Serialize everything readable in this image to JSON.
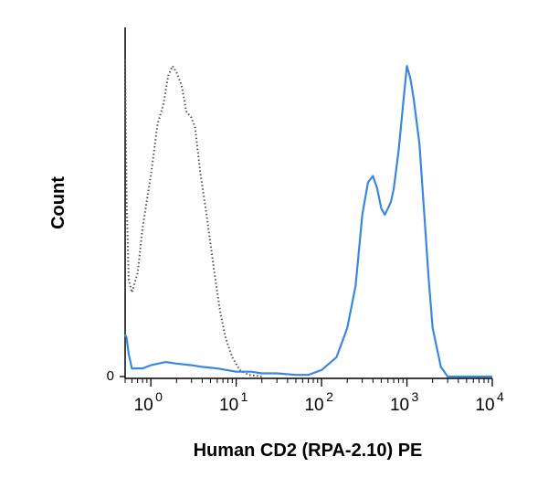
{
  "chart_data": {
    "type": "line",
    "title": "",
    "xlabel": "Human CD2 (RPA-2.10) PE",
    "ylabel": "Count",
    "x_scale": "log",
    "xlim": [
      0.5,
      10000
    ],
    "ylim": [
      0,
      1
    ],
    "grid": false,
    "legend": "none",
    "x_ticks": [
      {
        "value": 1,
        "base": "10",
        "exp": "0"
      },
      {
        "value": 10,
        "base": "10",
        "exp": "1"
      },
      {
        "value": 100,
        "base": "10",
        "exp": "2"
      },
      {
        "value": 1000,
        "base": "10",
        "exp": "3"
      },
      {
        "value": 10000,
        "base": "10",
        "exp": "4"
      }
    ],
    "y_ticks": [
      {
        "value": 0,
        "label": "0"
      }
    ],
    "series": [
      {
        "style": "dotted",
        "color": "#555555",
        "points": [
          [
            0.5,
            0.98
          ],
          [
            0.52,
            0.55
          ],
          [
            0.55,
            0.3
          ],
          [
            0.6,
            0.26
          ],
          [
            0.7,
            0.32
          ],
          [
            0.8,
            0.46
          ],
          [
            1.0,
            0.62
          ],
          [
            1.2,
            0.78
          ],
          [
            1.4,
            0.84
          ],
          [
            1.6,
            0.93
          ],
          [
            1.8,
            0.96
          ],
          [
            2.0,
            0.94
          ],
          [
            2.3,
            0.9
          ],
          [
            2.6,
            0.82
          ],
          [
            3.0,
            0.8
          ],
          [
            3.3,
            0.77
          ],
          [
            3.8,
            0.63
          ],
          [
            4.5,
            0.5
          ],
          [
            5.5,
            0.33
          ],
          [
            6.5,
            0.2
          ],
          [
            7.5,
            0.12
          ],
          [
            9.0,
            0.06
          ],
          [
            11,
            0.02
          ],
          [
            14,
            0.005
          ],
          [
            20,
            0.0
          ]
        ]
      },
      {
        "style": "solid",
        "color": "#3a87e0",
        "points": [
          [
            0.5,
            0.13
          ],
          [
            0.52,
            0.12
          ],
          [
            0.55,
            0.07
          ],
          [
            0.6,
            0.025
          ],
          [
            0.8,
            0.025
          ],
          [
            1.0,
            0.035
          ],
          [
            1.5,
            0.045
          ],
          [
            2.0,
            0.04
          ],
          [
            3.0,
            0.035
          ],
          [
            4.0,
            0.03
          ],
          [
            6.0,
            0.025
          ],
          [
            10,
            0.015
          ],
          [
            15,
            0.015
          ],
          [
            20,
            0.01
          ],
          [
            30,
            0.01
          ],
          [
            50,
            0.005
          ],
          [
            70,
            0.005
          ],
          [
            100,
            0.02
          ],
          [
            150,
            0.06
          ],
          [
            200,
            0.15
          ],
          [
            250,
            0.28
          ],
          [
            300,
            0.5
          ],
          [
            350,
            0.6
          ],
          [
            400,
            0.62
          ],
          [
            450,
            0.58
          ],
          [
            500,
            0.52
          ],
          [
            550,
            0.5
          ],
          [
            600,
            0.52
          ],
          [
            650,
            0.54
          ],
          [
            700,
            0.58
          ],
          [
            800,
            0.7
          ],
          [
            900,
            0.84
          ],
          [
            1000,
            0.96
          ],
          [
            1100,
            0.92
          ],
          [
            1200,
            0.86
          ],
          [
            1400,
            0.72
          ],
          [
            1600,
            0.5
          ],
          [
            1800,
            0.3
          ],
          [
            2000,
            0.15
          ],
          [
            2500,
            0.03
          ],
          [
            3000,
            0.0
          ],
          [
            10000,
            0.0
          ]
        ]
      }
    ]
  }
}
